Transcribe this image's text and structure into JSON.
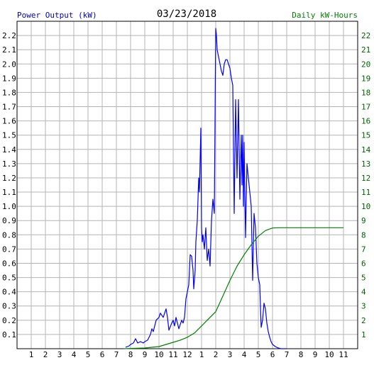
{
  "header": {
    "left_label": "Power Output (kW)",
    "date": "03/23/2018",
    "right_label": "Daily kW-Hours"
  },
  "colors": {
    "power_series": "#0000ff",
    "energy_series": "#008000",
    "grid": "#b4b4b4",
    "left_label": "#0000cc",
    "right_label": "#008000",
    "right_ticks": "#006400"
  },
  "chart_data": {
    "type": "line",
    "title": "03/23/2018",
    "ylabel": "Power Output (kW)",
    "y2label": "Daily kW-Hours",
    "x_tick_labels": [
      "1",
      "2",
      "3",
      "4",
      "5",
      "6",
      "7",
      "8",
      "9",
      "10",
      "11",
      "12",
      "1",
      "2",
      "3",
      "4",
      "5",
      "6",
      "7",
      "8",
      "9",
      "10",
      "11"
    ],
    "x_range_hours": [
      0,
      24
    ],
    "ylim": [
      0,
      2.3
    ],
    "y_ticks": [
      "0.1",
      "0.2",
      "0.3",
      "0.4",
      "0.5",
      "0.6",
      "0.7",
      "0.8",
      "0.9",
      "1.0",
      "1.1",
      "1.2",
      "1.3",
      "1.4",
      "1.5",
      "1.6",
      "1.7",
      "1.8",
      "1.9",
      "2.0",
      "2.1",
      "2.2"
    ],
    "y2lim": [
      0,
      23
    ],
    "y2_ticks": [
      "1",
      "2",
      "3",
      "4",
      "5",
      "6",
      "7",
      "8",
      "9",
      "10",
      "11",
      "12",
      "13",
      "14",
      "15",
      "16",
      "17",
      "18",
      "19",
      "20",
      "21",
      "22"
    ],
    "grid": true,
    "series": [
      {
        "name": "Power Output (kW)",
        "axis": "left",
        "x": [
          7.65,
          7.9,
          8.0,
          8.2,
          8.35,
          8.5,
          8.7,
          8.9,
          9.0,
          9.2,
          9.4,
          9.5,
          9.6,
          9.7,
          9.8,
          10.0,
          10.1,
          10.3,
          10.5,
          10.6,
          10.7,
          10.9,
          11.0,
          11.1,
          11.2,
          11.3,
          11.4,
          11.5,
          11.6,
          11.7,
          11.8,
          11.9,
          12.0,
          12.1,
          12.2,
          12.3,
          12.4,
          12.45,
          12.55,
          12.6,
          12.7,
          12.8,
          12.85,
          12.95,
          13.0,
          13.05,
          13.1,
          13.2,
          13.3,
          13.4,
          13.5,
          13.6,
          13.7,
          13.8,
          13.9,
          14.0,
          14.05,
          14.1,
          14.2,
          14.3,
          14.4,
          14.5,
          14.6,
          14.7,
          14.8,
          14.9,
          15.0,
          15.1,
          15.2,
          15.3,
          15.4,
          15.5,
          15.6,
          15.7,
          15.75,
          15.8,
          15.85,
          15.9,
          15.95,
          16.0,
          16.05,
          16.1,
          16.15,
          16.2,
          16.3,
          16.4,
          16.5,
          16.6,
          16.7,
          16.8,
          16.9,
          17.0,
          17.1,
          17.2,
          17.3,
          17.4,
          17.5,
          17.6,
          17.7,
          17.8,
          17.9,
          18.0,
          18.2,
          18.4,
          18.6,
          18.8,
          19.0
        ],
        "y": [
          0.01,
          0.02,
          0.03,
          0.04,
          0.07,
          0.04,
          0.05,
          0.04,
          0.05,
          0.06,
          0.1,
          0.14,
          0.12,
          0.16,
          0.2,
          0.22,
          0.25,
          0.22,
          0.28,
          0.22,
          0.13,
          0.18,
          0.2,
          0.16,
          0.22,
          0.18,
          0.14,
          0.17,
          0.2,
          0.18,
          0.22,
          0.35,
          0.4,
          0.45,
          0.66,
          0.65,
          0.55,
          0.42,
          0.55,
          0.75,
          0.9,
          1.2,
          1.1,
          1.55,
          0.85,
          0.75,
          0.8,
          0.7,
          0.85,
          0.62,
          0.7,
          0.58,
          0.9,
          1.05,
          0.95,
          2.25,
          2.2,
          2.1,
          2.05,
          2.0,
          1.95,
          1.92,
          2.0,
          2.03,
          2.03,
          2.0,
          1.97,
          1.9,
          1.85,
          0.95,
          1.75,
          1.2,
          1.75,
          1.05,
          1.3,
          1.5,
          1.15,
          1.5,
          1.0,
          1.45,
          1.1,
          0.78,
          1.05,
          1.3,
          1.2,
          1.1,
          1.0,
          0.48,
          0.95,
          0.85,
          0.6,
          0.5,
          0.45,
          0.15,
          0.2,
          0.32,
          0.28,
          0.18,
          0.12,
          0.08,
          0.05,
          0.03,
          0.015,
          0.005,
          0.0,
          0.0,
          0.0
        ]
      },
      {
        "name": "Daily kW-Hours",
        "axis": "right",
        "x": [
          7.5,
          9.0,
          10.0,
          10.5,
          11.0,
          11.5,
          12.0,
          12.5,
          13.0,
          13.5,
          14.0,
          14.5,
          15.0,
          15.5,
          16.0,
          16.5,
          17.0,
          17.5,
          18.0,
          18.5,
          19.0,
          20.0,
          22.0,
          23.0
        ],
        "y": [
          0.0,
          0.05,
          0.15,
          0.3,
          0.45,
          0.6,
          0.8,
          1.1,
          1.6,
          2.1,
          2.6,
          3.7,
          4.8,
          5.8,
          6.6,
          7.3,
          7.9,
          8.3,
          8.48,
          8.5,
          8.5,
          8.5,
          8.5,
          8.5
        ]
      }
    ]
  }
}
